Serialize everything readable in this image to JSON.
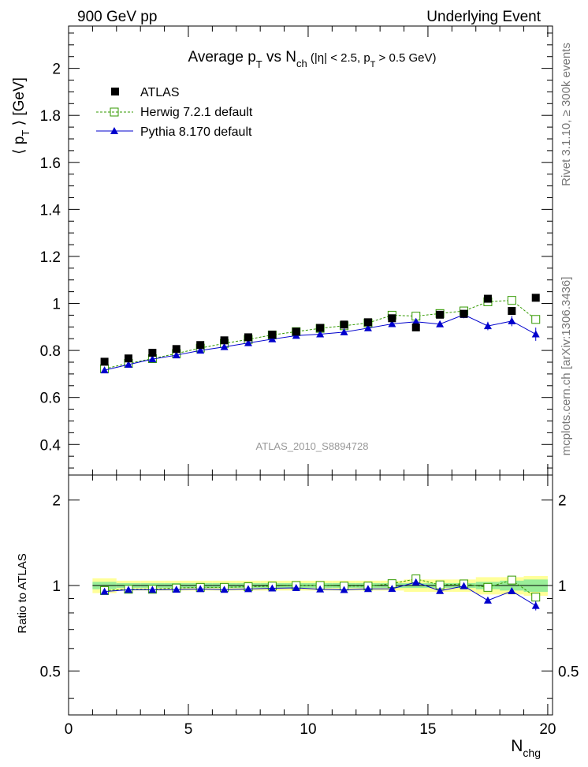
{
  "header": {
    "left": "900 GeV pp",
    "right": "Underlying Event"
  },
  "side_labels": {
    "rivet": "Rivet 3.1.10, ≥ 300k events",
    "mcplots": "mcplots.cern.ch [arXiv:1306.3436]"
  },
  "chart_data": [
    {
      "type": "scatter",
      "panel": "main",
      "title": "Average p_T vs N_ch (|η| < 2.5, p_T > 0.5 GeV)",
      "title_parts": {
        "a": "Average p",
        "a_sub": "T",
        "b": " vs N",
        "b_sub": "ch",
        "c": " (|η| < 2.5, p",
        "c_sub": "T",
        "d": " > 0.5 GeV)"
      },
      "ylabel": "⟨ p_T ⟩ [GeV]",
      "ylabel_parts": {
        "pre": "⟨ p",
        "sub": "T",
        "post": " ⟩ [GeV]"
      },
      "watermark": "ATLAS_2010_S8894728",
      "xlim": [
        0,
        20.2
      ],
      "ylim": [
        0.27,
        2.18
      ],
      "yticks": [
        "0.4",
        "0.6",
        "0.8",
        "1",
        "1.2",
        "1.4",
        "1.6",
        "1.8",
        "2"
      ],
      "legend_position": "top-left",
      "series": [
        {
          "name": "ATLAS",
          "style": "black-square",
          "x": [
            1.5,
            2.5,
            3.5,
            4.5,
            5.5,
            6.5,
            7.5,
            8.5,
            9.5,
            10.5,
            11.5,
            12.5,
            13.5,
            14.5,
            15.5,
            16.5,
            17.5,
            18.5,
            19.5
          ],
          "values": [
            0.752,
            0.766,
            0.79,
            0.806,
            0.823,
            0.843,
            0.856,
            0.867,
            0.88,
            0.896,
            0.91,
            0.92,
            0.937,
            0.898,
            0.952,
            0.956,
            1.02,
            0.968,
            1.024
          ]
        },
        {
          "name": "Herwig 7.2.1 default",
          "style": "green-open-square-dashed",
          "x": [
            1.5,
            2.5,
            3.5,
            4.5,
            5.5,
            6.5,
            7.5,
            8.5,
            9.5,
            10.5,
            11.5,
            12.5,
            13.5,
            14.5,
            15.5,
            16.5,
            17.5,
            18.5,
            19.5
          ],
          "values": [
            0.722,
            0.745,
            0.765,
            0.787,
            0.81,
            0.83,
            0.847,
            0.866,
            0.88,
            0.894,
            0.905,
            0.917,
            0.95,
            0.946,
            0.957,
            0.968,
            1.007,
            1.013,
            0.932
          ]
        },
        {
          "name": "Pythia 8.170 default",
          "style": "blue-triangle-solid",
          "x": [
            1.5,
            2.5,
            3.5,
            4.5,
            5.5,
            6.5,
            7.5,
            8.5,
            9.5,
            10.5,
            11.5,
            12.5,
            13.5,
            14.5,
            15.5,
            16.5,
            17.5,
            18.5,
            19.5
          ],
          "values": [
            0.716,
            0.74,
            0.763,
            0.78,
            0.8,
            0.815,
            0.832,
            0.848,
            0.863,
            0.869,
            0.878,
            0.895,
            0.913,
            0.922,
            0.912,
            0.952,
            0.904,
            0.925,
            0.869
          ],
          "errors": [
            0.004,
            0.004,
            0.004,
            0.004,
            0.004,
            0.004,
            0.005,
            0.005,
            0.006,
            0.006,
            0.007,
            0.008,
            0.009,
            0.011,
            0.012,
            0.015,
            0.018,
            0.022,
            0.028
          ]
        }
      ]
    },
    {
      "type": "scatter",
      "panel": "ratio",
      "ylabel": "Ratio to ATLAS",
      "xlabel": "N_chg",
      "xlabel_parts": {
        "main": "N",
        "sub": "chg"
      },
      "xlim": [
        0,
        20.2
      ],
      "ylim": [
        0.35,
        2.45
      ],
      "xticks": [
        "0",
        "5",
        "10",
        "15",
        "20"
      ],
      "yticks": [
        "0.5",
        "1",
        "2"
      ],
      "bands": {
        "x_edges": [
          1,
          2,
          3,
          4,
          5,
          6,
          7,
          8,
          9,
          10,
          11,
          12,
          13,
          14,
          15,
          16,
          17,
          18,
          19,
          20
        ],
        "stat_half_width": [
          0.03,
          0.02,
          0.02,
          0.02,
          0.02,
          0.02,
          0.02,
          0.02,
          0.02,
          0.02,
          0.02,
          0.02,
          0.02,
          0.02,
          0.02,
          0.02,
          0.03,
          0.04,
          0.05
        ],
        "total_half_width": [
          0.06,
          0.04,
          0.04,
          0.04,
          0.04,
          0.04,
          0.04,
          0.04,
          0.04,
          0.04,
          0.04,
          0.04,
          0.04,
          0.05,
          0.05,
          0.05,
          0.07,
          0.07,
          0.08
        ]
      },
      "series": [
        {
          "name": "Herwig 7.2.1 default",
          "style": "green-open-square-dashed",
          "x": [
            1.5,
            2.5,
            3.5,
            4.5,
            5.5,
            6.5,
            7.5,
            8.5,
            9.5,
            10.5,
            11.5,
            12.5,
            13.5,
            14.5,
            15.5,
            16.5,
            17.5,
            18.5,
            19.5
          ],
          "values": [
            0.96,
            0.97,
            0.97,
            0.98,
            0.985,
            0.985,
            0.99,
            0.995,
            1.0,
            1.0,
            0.995,
            0.995,
            1.015,
            1.055,
            1.005,
            1.013,
            0.985,
            1.045,
            0.91
          ]
        },
        {
          "name": "Pythia 8.170 default",
          "style": "blue-triangle-solid",
          "x": [
            1.5,
            2.5,
            3.5,
            4.5,
            5.5,
            6.5,
            7.5,
            8.5,
            9.5,
            10.5,
            11.5,
            12.5,
            13.5,
            14.5,
            15.5,
            16.5,
            17.5,
            18.5,
            19.5
          ],
          "values": [
            0.952,
            0.966,
            0.966,
            0.968,
            0.972,
            0.967,
            0.972,
            0.978,
            0.981,
            0.97,
            0.965,
            0.973,
            0.974,
            1.027,
            0.958,
            0.996,
            0.886,
            0.956,
            0.849
          ],
          "errors": [
            0.004,
            0.004,
            0.004,
            0.004,
            0.004,
            0.004,
            0.005,
            0.005,
            0.006,
            0.006,
            0.007,
            0.008,
            0.009,
            0.011,
            0.012,
            0.015,
            0.018,
            0.022,
            0.032
          ]
        }
      ]
    }
  ]
}
